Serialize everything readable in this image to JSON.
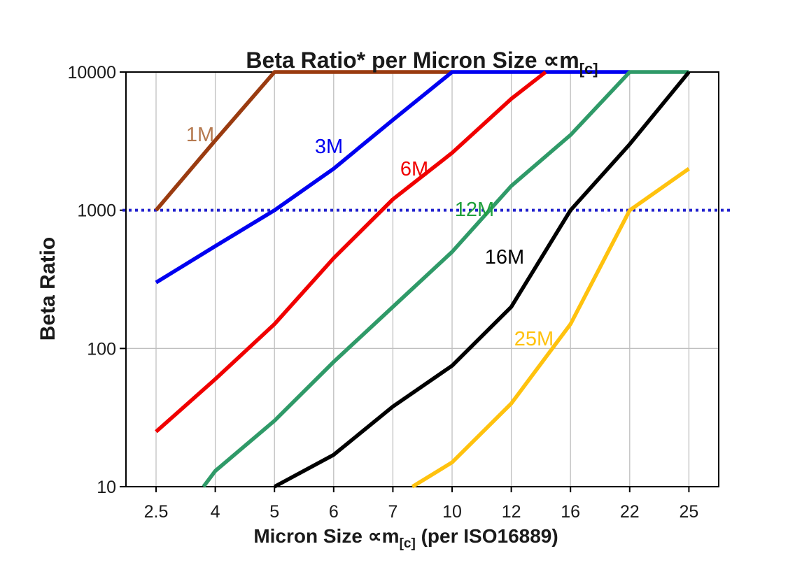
{
  "title": {
    "main": "Beta Ratio* per Micron Size ∝m",
    "subscript": "[c]"
  },
  "y_axis": {
    "label": "Beta Ratio",
    "tick_labels": [
      "10000",
      "1000",
      "100",
      "10"
    ]
  },
  "x_axis": {
    "label_main": "Micron Size ∝m",
    "label_subscript": "[c]",
    "label_suffix": " (per ISO16889)",
    "tick_labels": [
      "2.5",
      "4",
      "5",
      "6",
      "7",
      "10",
      "12",
      "16",
      "22",
      "25"
    ]
  },
  "reference_line": {
    "beta_value": 1000,
    "color": "#2121ce",
    "style": "dotted"
  },
  "frame_color": "#000000",
  "gridline_color": "#bfbfbf",
  "chart_data": {
    "type": "line",
    "title": "Beta Ratio* per Micron Size ∝m[c]",
    "xlabel": "Micron Size ∝m[c] (per ISO16889)",
    "ylabel": "Beta Ratio",
    "x_scale": "category",
    "y_scale": "log",
    "ylim": [
      10,
      10000
    ],
    "grid": {
      "vertical": "every category",
      "horizontal_values": [
        100
      ]
    },
    "legend_position": "inline labels on curves",
    "categories": [
      2.5,
      4,
      5,
      6,
      7,
      10,
      12,
      16,
      22,
      25
    ],
    "cap_value": 10000,
    "reference_value": 1000,
    "series": [
      {
        "name": "1M",
        "color": "#9a3b10",
        "label_color": "#b5794f",
        "label_pos": [
          286,
          202
        ],
        "points": [
          [
            0,
            1000
          ],
          [
            1,
            3200
          ],
          [
            2,
            10000
          ],
          [
            5,
            10000
          ]
        ]
      },
      {
        "name": "3M",
        "color": "#0000f0",
        "label_color": "#0000f0",
        "label_pos": [
          470,
          219
        ],
        "points": [
          [
            0,
            300
          ],
          [
            1,
            550
          ],
          [
            2,
            1000
          ],
          [
            3,
            2000
          ],
          [
            4,
            4500
          ],
          [
            5,
            10000
          ],
          [
            8,
            10000
          ]
        ]
      },
      {
        "name": "6M",
        "color": "#f00000",
        "label_color": "#f00000",
        "label_pos": [
          592,
          251
        ],
        "points": [
          [
            0,
            25
          ],
          [
            1,
            60
          ],
          [
            2,
            150
          ],
          [
            3,
            450
          ],
          [
            4,
            1200
          ],
          [
            5,
            2600
          ],
          [
            6,
            6400
          ],
          [
            6.58,
            10000
          ]
        ]
      },
      {
        "name": "12M",
        "color": "#2f9a68",
        "label_color": "#1fa03c",
        "label_pos": [
          678,
          309
        ],
        "points": [
          [
            0.8,
            10
          ],
          [
            1,
            13
          ],
          [
            2,
            30
          ],
          [
            3,
            80
          ],
          [
            4,
            200
          ],
          [
            5,
            500
          ],
          [
            6,
            1500
          ],
          [
            7,
            3500
          ],
          [
            8,
            10000
          ],
          [
            9,
            10000
          ]
        ]
      },
      {
        "name": "16M",
        "color": "#000000",
        "label_color": "#000000",
        "label_pos": [
          721,
          377
        ],
        "points": [
          [
            2,
            10
          ],
          [
            3,
            17
          ],
          [
            4,
            38
          ],
          [
            5,
            75
          ],
          [
            6,
            200
          ],
          [
            7,
            1000
          ],
          [
            8,
            3000
          ],
          [
            9,
            10000
          ]
        ]
      },
      {
        "name": "25M",
        "color": "#ffc20e",
        "label_color": "#ffc20e",
        "label_pos": [
          763,
          494
        ],
        "points": [
          [
            4.33,
            10
          ],
          [
            5,
            15
          ],
          [
            6,
            40
          ],
          [
            7,
            150
          ],
          [
            8,
            1000
          ],
          [
            9,
            2000
          ]
        ]
      }
    ]
  }
}
